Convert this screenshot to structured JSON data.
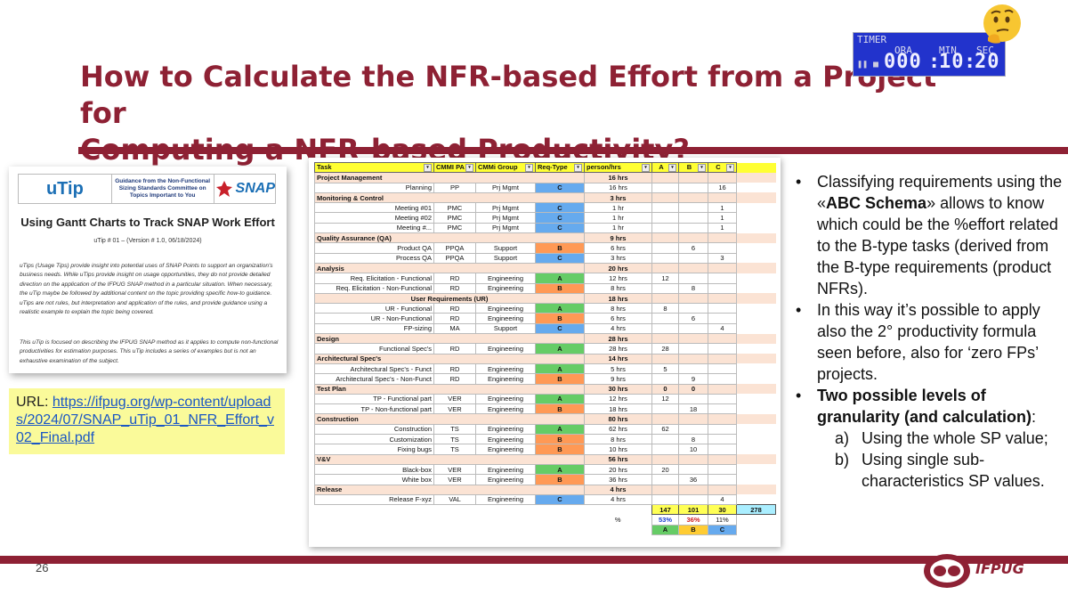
{
  "title_line1": "How to Calculate the NFR-based Effort from a Project for",
  "title_line2": "Computing a NFR-based Productivity?",
  "timer": {
    "label": "TIMER",
    "col_h": "ORA",
    "col_m": "MIN",
    "col_s": "SEC",
    "h": "000",
    "m": "10",
    "s": "20"
  },
  "doc": {
    "brand": "uTip",
    "guidance": "Guidance from the Non-Functional Sizing Standards Committee on Topics Important to You",
    "snap_logo": "SNAP",
    "title": "Using Gantt Charts to Track SNAP Work Effort",
    "subtitle": "uTip # 01 – (Version # 1.0, 06/18/2024)",
    "p1": "uTips (Usage Tips) provide insight into potential uses of SNAP Points to support an organization's business needs. While uTips provide insight on usage opportunities, they do not provide detailed direction on the application of the IFPUG SNAP method in a particular situation. When necessary, the uTip maybe be followed by additional content on the topic providing specific how-to guidance. uTips are not rules, but interpretation and application of the rules, and provide guidance using a realistic example to explain the topic being covered.",
    "p2": "This uTip is focused on describing the IFPUG SNAP method as it applies to compute non-functional productivities for estimation purposes. This uTip includes a series of examples but is not an exhaustive examination of the subject."
  },
  "url": {
    "label": "URL: ",
    "link": "https://ifpug.org/wp-content/uploads/2024/07/SNAP_uTip_01_NFR_Effort_v02_Final.pdf"
  },
  "sheet": {
    "headers": [
      "Task",
      "CMMI PA",
      "CMMi Group",
      "Req-Type",
      "person/hrs",
      "A",
      "B",
      "C"
    ],
    "rows": [
      {
        "cat": "Project Management",
        "hrs": "16 hrs"
      },
      {
        "task": "Planning",
        "pa": "PP",
        "grp": "Prj Mgmt",
        "type": "C",
        "hrs": "16 hrs",
        "a": "",
        "b": "",
        "c": "16"
      },
      {
        "cat": "Monitoring & Control",
        "hrs": "3 hrs"
      },
      {
        "task": "Meeting #01",
        "pa": "PMC",
        "grp": "Prj Mgmt",
        "type": "C",
        "hrs": "1 hr",
        "a": "",
        "b": "",
        "c": "1"
      },
      {
        "task": "Meeting #02",
        "pa": "PMC",
        "grp": "Prj Mgmt",
        "type": "C",
        "hrs": "1 hr",
        "a": "",
        "b": "",
        "c": "1"
      },
      {
        "task": "Meeting #...",
        "pa": "PMC",
        "grp": "Prj Mgmt",
        "type": "C",
        "hrs": "1 hr",
        "a": "",
        "b": "",
        "c": "1"
      },
      {
        "cat": "Quality Assurance (QA)",
        "hrs": "9 hrs"
      },
      {
        "task": "Product QA",
        "pa": "PPQA",
        "grp": "Support",
        "type": "B",
        "hrs": "6 hrs",
        "a": "",
        "b": "6",
        "c": ""
      },
      {
        "task": "Process QA",
        "pa": "PPQA",
        "grp": "Support",
        "type": "C",
        "hrs": "3 hrs",
        "a": "",
        "b": "",
        "c": "3"
      },
      {
        "cat": "Analysis",
        "hrs": "20 hrs"
      },
      {
        "task": "Req. Elicitation - Functional",
        "pa": "RD",
        "grp": "Engineering",
        "type": "A",
        "hrs": "12 hrs",
        "a": "12",
        "b": "",
        "c": ""
      },
      {
        "task": "Req. Elicitation - Non-Functional",
        "pa": "RD",
        "grp": "Engineering",
        "type": "B",
        "hrs": "8 hrs",
        "a": "",
        "b": "8",
        "c": ""
      },
      {
        "cat": "User Requirements (UR)",
        "hrs": "18 hrs",
        "indent": true
      },
      {
        "task": "UR - Functional",
        "pa": "RD",
        "grp": "Engineering",
        "type": "A",
        "hrs": "8 hrs",
        "a": "8",
        "b": "",
        "c": ""
      },
      {
        "task": "UR - Non-Functional",
        "pa": "RD",
        "grp": "Engineering",
        "type": "B",
        "hrs": "6 hrs",
        "a": "",
        "b": "6",
        "c": ""
      },
      {
        "task": "FP-sizing",
        "pa": "MA",
        "grp": "Support",
        "type": "C",
        "hrs": "4 hrs",
        "a": "",
        "b": "",
        "c": "4"
      },
      {
        "cat": "Design",
        "hrs": "28 hrs"
      },
      {
        "task": "Functional Spec's",
        "pa": "RD",
        "grp": "Engineering",
        "type": "A",
        "hrs": "28 hrs",
        "a": "28",
        "b": "",
        "c": ""
      },
      {
        "cat": "Architectural Spec's",
        "hrs": "14 hrs"
      },
      {
        "task": "Architectural Spec's - Funct",
        "pa": "RD",
        "grp": "Engineering",
        "type": "A",
        "hrs": "5 hrs",
        "a": "5",
        "b": "",
        "c": ""
      },
      {
        "task": "Architectural Spec's - Non-Funct",
        "pa": "RD",
        "grp": "Engineering",
        "type": "B",
        "hrs": "9 hrs",
        "a": "",
        "b": "9",
        "c": ""
      },
      {
        "cat": "Test Plan",
        "hrs": "30 hrs",
        "a": "0",
        "b": "0"
      },
      {
        "task": "TP - Functional part",
        "pa": "VER",
        "grp": "Engineering",
        "type": "A",
        "hrs": "12 hrs",
        "a": "12",
        "b": "",
        "c": ""
      },
      {
        "task": "TP - Non-functional part",
        "pa": "VER",
        "grp": "Engineering",
        "type": "B",
        "hrs": "18 hrs",
        "a": "",
        "b": "18",
        "c": ""
      },
      {
        "cat": "Construction",
        "hrs": "80 hrs"
      },
      {
        "task": "Construction",
        "pa": "TS",
        "grp": "Engineering",
        "type": "A",
        "hrs": "62 hrs",
        "a": "62",
        "b": "",
        "c": ""
      },
      {
        "task": "Customization",
        "pa": "TS",
        "grp": "Engineering",
        "type": "B",
        "hrs": "8 hrs",
        "a": "",
        "b": "8",
        "c": ""
      },
      {
        "task": "Fixing bugs",
        "pa": "TS",
        "grp": "Engineering",
        "type": "B",
        "hrs": "10 hrs",
        "a": "",
        "b": "10",
        "c": ""
      },
      {
        "cat": "V&V",
        "hrs": "56 hrs"
      },
      {
        "task": "Black-box",
        "pa": "VER",
        "grp": "Engineering",
        "type": "A",
        "hrs": "20 hrs",
        "a": "20",
        "b": "",
        "c": ""
      },
      {
        "task": "White box",
        "pa": "VER",
        "grp": "Engineering",
        "type": "B",
        "hrs": "36 hrs",
        "a": "",
        "b": "36",
        "c": ""
      },
      {
        "cat": "Release",
        "hrs": "4 hrs"
      },
      {
        "task": "Release F-xyz",
        "pa": "VAL",
        "grp": "Engineering",
        "type": "C",
        "hrs": "4 hrs",
        "a": "",
        "b": "",
        "c": "4"
      }
    ],
    "totals": {
      "a": "147",
      "b": "101",
      "c": "30",
      "all": "278"
    },
    "pct": {
      "label": "%",
      "a": "53%",
      "b": "36%",
      "c": "11%"
    },
    "letters": {
      "a": "A",
      "b": "B",
      "c": "C"
    }
  },
  "bullets": {
    "b1_pre": "Classifying requirements using the «",
    "b1_bold": "ABC Schema",
    "b1_post": "» allows to know which could be the %effort related to the B-type tasks (derived from the B-type requirements (product NFRs).",
    "b2": "In this way it’s possible to apply also the 2° productivity formula seen before, also for ‘zero FPs’ projects.",
    "b3_bold": "Two possible levels of granularity (and calculation)",
    "b3_post": ":",
    "subs": [
      {
        "marker": "a)",
        "text": "Using the whole SP value;"
      },
      {
        "marker": "b)",
        "text": "Using single sub-characteristics SP values."
      }
    ]
  },
  "footer": {
    "page": "26",
    "logo_text": "IFPUG"
  },
  "colors": {
    "brand": "#8e2134",
    "typeA": "#66cc66",
    "typeB": "#ff9955",
    "typeC": "#66aaee",
    "header": "#ffff33"
  }
}
